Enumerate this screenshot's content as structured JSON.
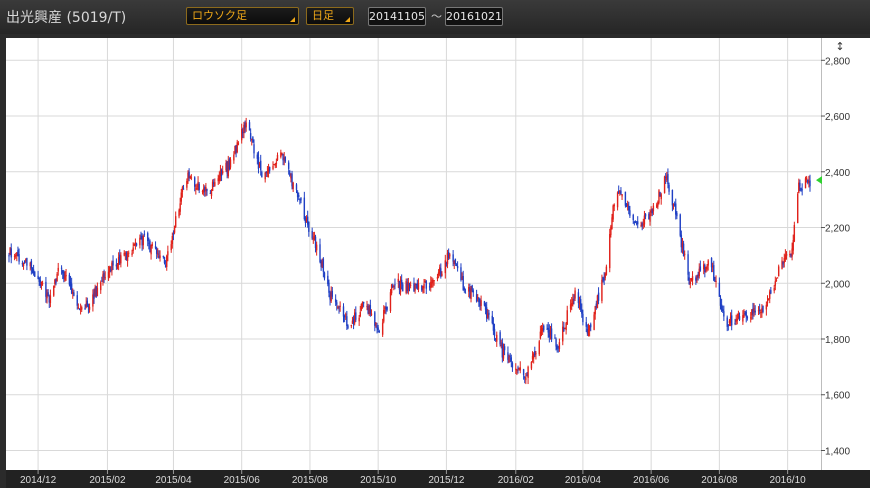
{
  "header": {
    "title": "出光興産 (5019/T)",
    "chart_type_select": "ロウソク足",
    "period_select": "日足",
    "date_from": "20141105",
    "date_to": "20161021",
    "tilde": "～"
  },
  "colors": {
    "up": "#e0211a",
    "down": "#1f3fc4",
    "grid": "#d9d9d9",
    "marker": "#2fd12f"
  },
  "chart_data": {
    "type": "candlestick",
    "ylim": [
      1330,
      2880
    ],
    "yticks": [
      "1,400",
      "1,600",
      "1,800",
      "2,000",
      "2,200",
      "2,400",
      "2,600",
      "2,800"
    ],
    "ytick_values": [
      1400,
      1600,
      1800,
      2000,
      2200,
      2400,
      2600,
      2800
    ],
    "xticks": [
      "2014/12",
      "2015/02",
      "2015/04",
      "2015/06",
      "2015/08",
      "2015/10",
      "2015/12",
      "2016/02",
      "2016/04",
      "2016/06",
      "2016/08",
      "2016/10"
    ],
    "xtick_dates": [
      "2014-12-01",
      "2015-02-01",
      "2015-04-01",
      "2015-06-01",
      "2015-08-01",
      "2015-10-01",
      "2015-12-01",
      "2016-02-01",
      "2016-04-01",
      "2016-06-01",
      "2016-08-01",
      "2016-10-01"
    ],
    "x_start": "2014-11-05",
    "x_end": "2016-10-21",
    "last_close": 2370,
    "anchors": [
      [
        "2014-11-05",
        2110
      ],
      [
        "2014-11-25",
        2060
      ],
      [
        "2014-12-12",
        1940
      ],
      [
        "2014-12-20",
        2060
      ],
      [
        "2015-01-10",
        1900
      ],
      [
        "2015-02-05",
        2060
      ],
      [
        "2015-03-05",
        2160
      ],
      [
        "2015-03-25",
        2070
      ],
      [
        "2015-04-12",
        2380
      ],
      [
        "2015-05-01",
        2330
      ],
      [
        "2015-05-20",
        2420
      ],
      [
        "2015-06-05",
        2570
      ],
      [
        "2015-06-20",
        2380
      ],
      [
        "2015-07-05",
        2470
      ],
      [
        "2015-07-20",
        2320
      ],
      [
        "2015-08-05",
        2150
      ],
      [
        "2015-08-20",
        1950
      ],
      [
        "2015-09-05",
        1850
      ],
      [
        "2015-09-20",
        1930
      ],
      [
        "2015-10-01",
        1820
      ],
      [
        "2015-10-15",
        2000
      ],
      [
        "2015-11-01",
        1980
      ],
      [
        "2015-11-20",
        2000
      ],
      [
        "2015-12-05",
        2110
      ],
      [
        "2015-12-15",
        2000
      ],
      [
        "2016-01-05",
        1900
      ],
      [
        "2016-01-20",
        1750
      ],
      [
        "2016-02-10",
        1660
      ],
      [
        "2016-02-25",
        1840
      ],
      [
        "2016-03-10",
        1780
      ],
      [
        "2016-03-25",
        1970
      ],
      [
        "2016-04-05",
        1820
      ],
      [
        "2016-04-20",
        2020
      ],
      [
        "2016-05-01",
        2350
      ],
      [
        "2016-05-20",
        2200
      ],
      [
        "2016-06-01",
        2250
      ],
      [
        "2016-06-15",
        2380
      ],
      [
        "2016-06-25",
        2210
      ],
      [
        "2016-07-05",
        2010
      ],
      [
        "2016-07-25",
        2070
      ],
      [
        "2016-08-05",
        1860
      ],
      [
        "2016-08-25",
        1890
      ],
      [
        "2016-09-10",
        1920
      ],
      [
        "2016-09-25",
        2060
      ],
      [
        "2016-10-05",
        2130
      ],
      [
        "2016-10-10",
        2340
      ],
      [
        "2016-10-21",
        2370
      ]
    ]
  }
}
